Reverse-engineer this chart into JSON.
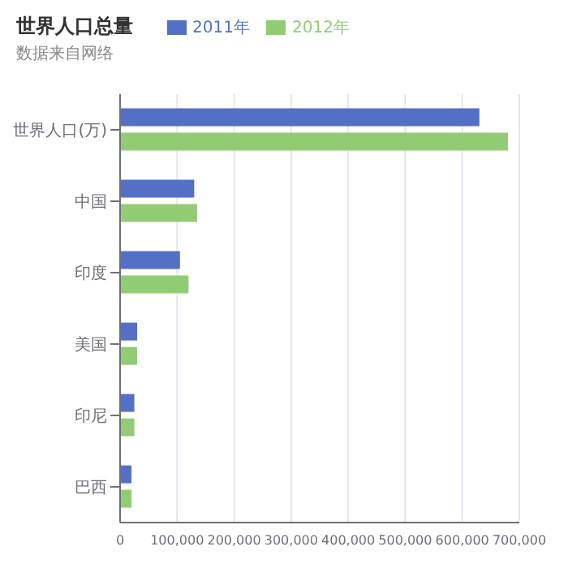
{
  "chart_data": {
    "type": "bar",
    "orientation": "horizontal",
    "title": "世界人口总量",
    "subtitle": "数据来自网络",
    "categories": [
      "世界人口(万)",
      "中国",
      "印度",
      "美国",
      "印尼",
      "巴西"
    ],
    "series": [
      {
        "name": "2011年",
        "color": "#5470c6",
        "values": [
          630000,
          130000,
          105000,
          30000,
          25000,
          20000
        ]
      },
      {
        "name": "2012年",
        "color": "#91cc75",
        "values": [
          680000,
          135000,
          120000,
          30000,
          25000,
          20000
        ]
      }
    ],
    "xlim": [
      0,
      700000
    ],
    "xticks": [
      0,
      {
        "value": 100000,
        "label": "100,000"
      },
      {
        "value": 200000,
        "label": "200,000"
      },
      {
        "value": 300000,
        "label": "300,000"
      },
      {
        "value": 400000,
        "label": "400,000"
      },
      {
        "value": 500000,
        "label": "500,000"
      },
      {
        "value": 600000,
        "label": "600,000"
      },
      {
        "value": 700000,
        "label": "700,000"
      }
    ],
    "grid": "x",
    "legend": "top"
  }
}
